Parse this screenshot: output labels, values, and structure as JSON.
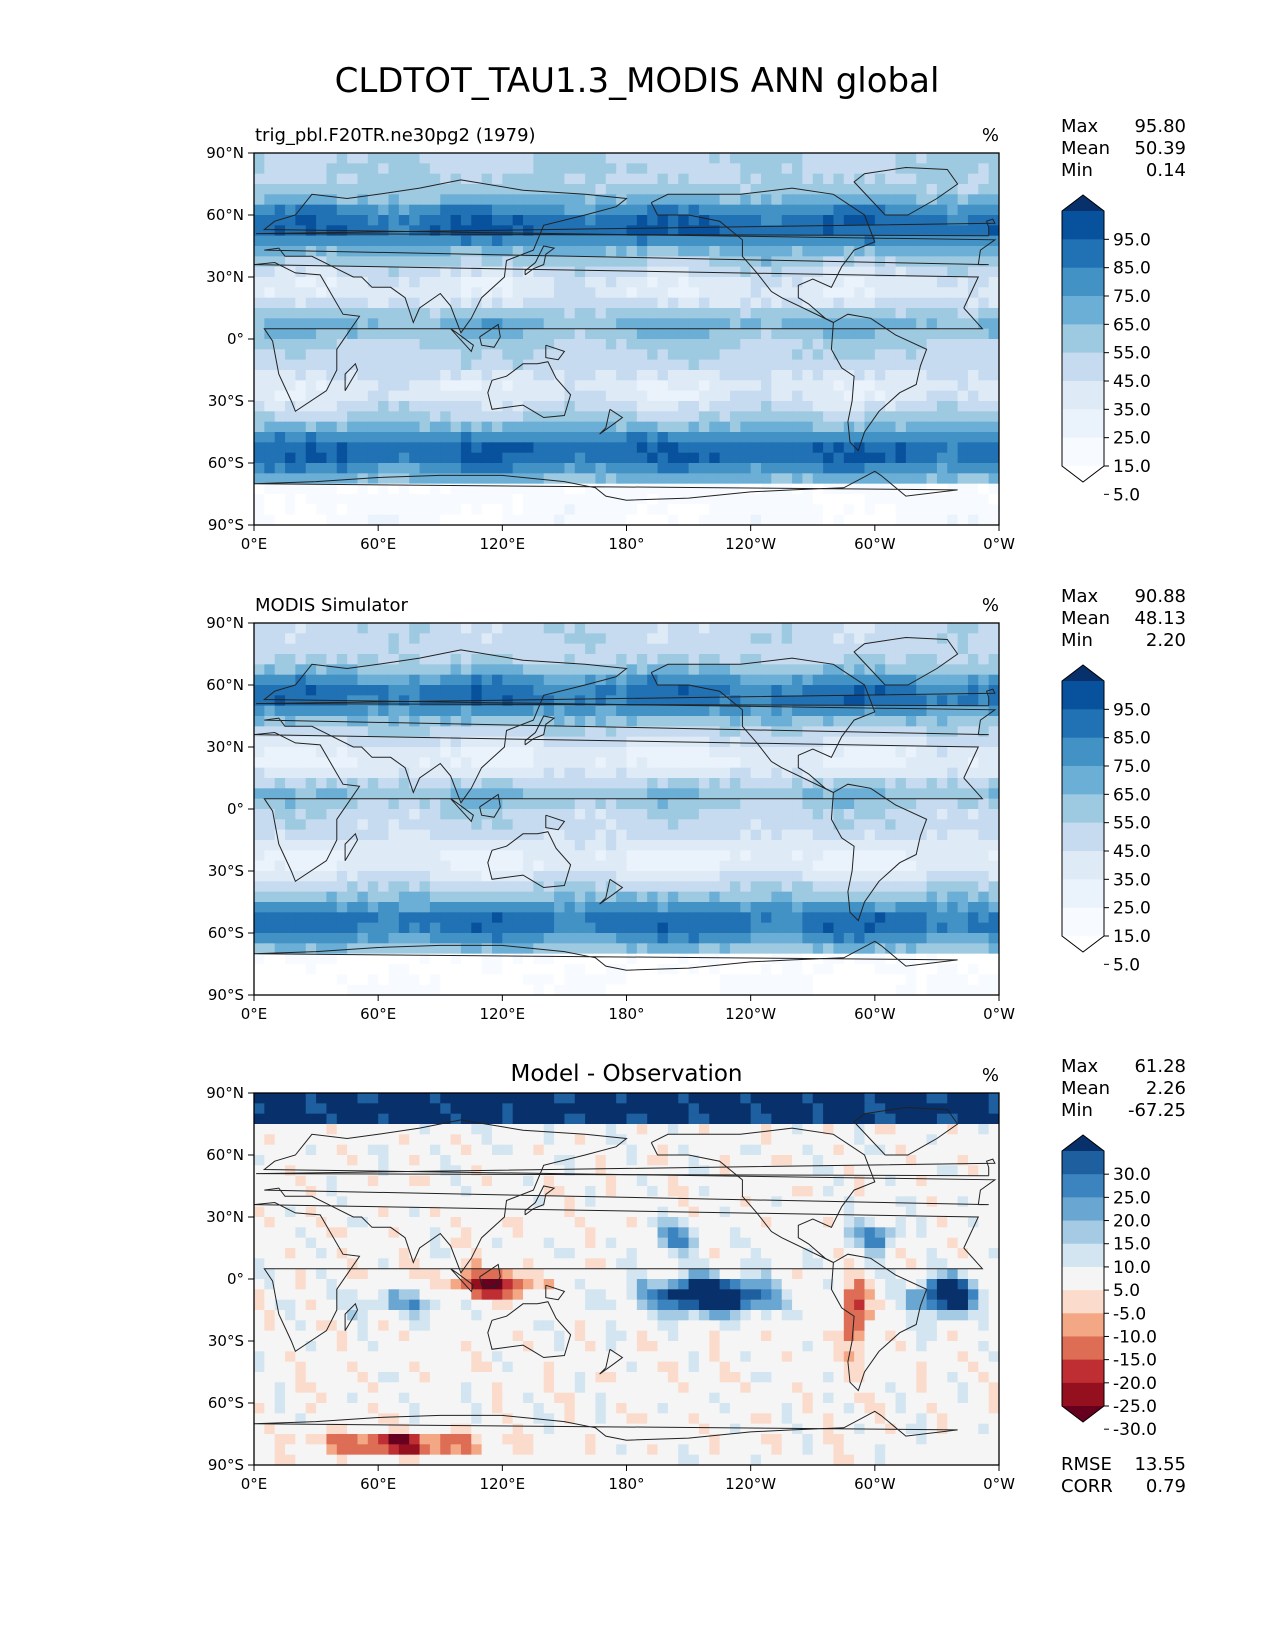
{
  "title": "CLDTOT_TAU1.3_MODIS ANN global",
  "x_ticks": [
    "0°E",
    "60°E",
    "120°E",
    "180°",
    "120°W",
    "60°W",
    "0°W"
  ],
  "y_ticks": [
    "90°N",
    "60°N",
    "30°N",
    "0°",
    "30°S",
    "60°S",
    "90°S"
  ],
  "chart_data": [
    {
      "type": "heatmap",
      "panel_title_left": "trig_pbl.F20TR.ne30pg2 (1979)",
      "panel_title_center": "",
      "units": "%",
      "stats": [
        {
          "label": "Max",
          "value": "95.80"
        },
        {
          "label": "Mean",
          "value": "50.39"
        },
        {
          "label": "Min",
          "value": "0.14"
        }
      ],
      "colorbar_levels": [
        "95.0",
        "85.0",
        "75.0",
        "65.0",
        "55.0",
        "45.0",
        "35.0",
        "25.0",
        "15.0",
        "5.0"
      ],
      "colorbar_colors": [
        "#08306b",
        "#08519c",
        "#2171b5",
        "#4292c6",
        "#6baed6",
        "#9ecae1",
        "#c6dbef",
        "#deebf7",
        "#eaf2fb",
        "#f7fbff",
        "#ffffff"
      ],
      "xlim": [
        0,
        360
      ],
      "ylim": [
        -90,
        90
      ],
      "footer_stats": []
    },
    {
      "type": "heatmap",
      "panel_title_left": "MODIS Simulator",
      "panel_title_center": "",
      "units": "%",
      "stats": [
        {
          "label": "Max",
          "value": "90.88"
        },
        {
          "label": "Mean",
          "value": "48.13"
        },
        {
          "label": "Min",
          "value": "2.20"
        }
      ],
      "colorbar_levels": [
        "95.0",
        "85.0",
        "75.0",
        "65.0",
        "55.0",
        "45.0",
        "35.0",
        "25.0",
        "15.0",
        "5.0"
      ],
      "colorbar_colors": [
        "#08306b",
        "#08519c",
        "#2171b5",
        "#4292c6",
        "#6baed6",
        "#9ecae1",
        "#c6dbef",
        "#deebf7",
        "#eaf2fb",
        "#f7fbff",
        "#ffffff"
      ],
      "xlim": [
        0,
        360
      ],
      "ylim": [
        -90,
        90
      ],
      "footer_stats": []
    },
    {
      "type": "heatmap",
      "panel_title_left": "",
      "panel_title_center": "Model - Observation",
      "units": "%",
      "stats": [
        {
          "label": "Max",
          "value": "61.28"
        },
        {
          "label": "Mean",
          "value": "2.26"
        },
        {
          "label": "Min",
          "value": "-67.25"
        }
      ],
      "colorbar_levels": [
        "30.0",
        "25.0",
        "20.0",
        "15.0",
        "10.0",
        "5.0",
        "-5.0",
        "-10.0",
        "-15.0",
        "-20.0",
        "-25.0",
        "-30.0"
      ],
      "colorbar_colors": [
        "#08306b",
        "#1e5fa0",
        "#3b84c0",
        "#6aa6d2",
        "#a4cbe3",
        "#d3e5f1",
        "#f5f5f5",
        "#fbdccc",
        "#f4a784",
        "#dd6d55",
        "#bf2e33",
        "#94101f",
        "#67001f"
      ],
      "xlim": [
        0,
        360
      ],
      "ylim": [
        -90,
        90
      ],
      "footer_stats": [
        {
          "label": "RMSE",
          "value": "13.55"
        },
        {
          "label": "CORR",
          "value": "0.79"
        }
      ]
    }
  ]
}
